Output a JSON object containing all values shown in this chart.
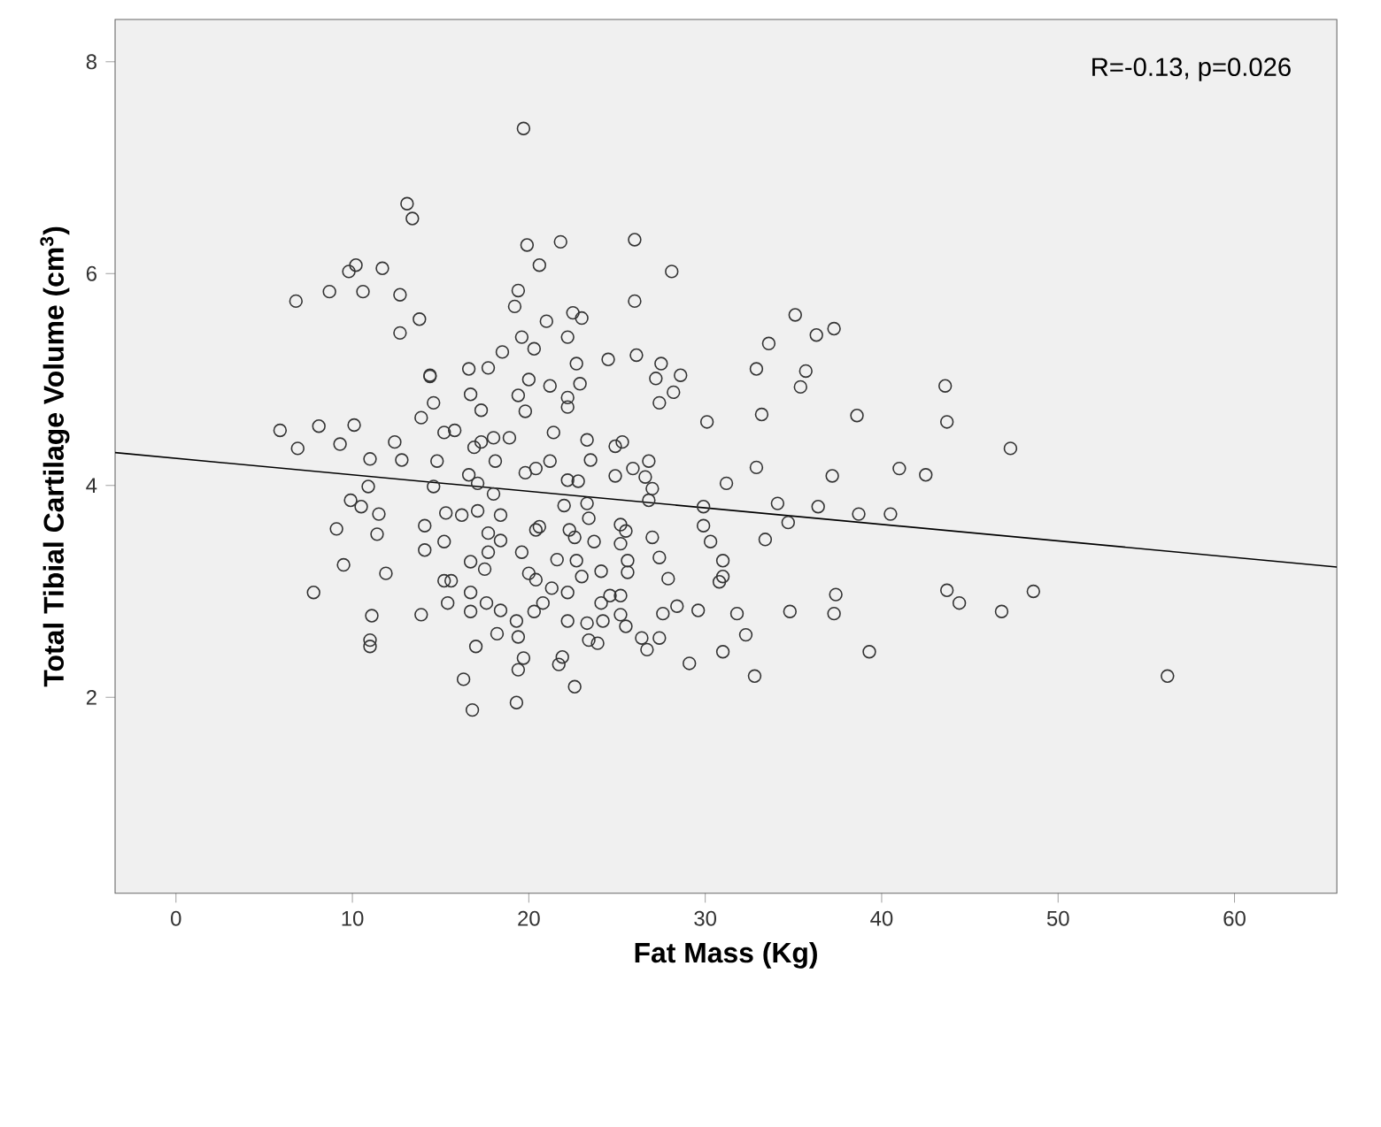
{
  "chart_data": {
    "type": "scatter",
    "xlabel": "Fat Mass (Kg)",
    "ylabel": "Total Tibial Cartilage Volume (cm$^{3}$)",
    "annotations": [
      "R=-0.13, p=0.026"
    ],
    "xlim": [
      -3.45,
      65.8
    ],
    "ylim": [
      0.15,
      8.4
    ],
    "xticks": [
      0,
      10,
      20,
      30,
      40,
      50,
      60
    ],
    "yticks": [
      2,
      4,
      6,
      8
    ],
    "marker": "circle",
    "series": [
      {
        "color": "#333333",
        "x": [
          13.1,
          13.4,
          10.2,
          9.8,
          11.7,
          6.8,
          8.7,
          10.6,
          12.7,
          13.8,
          12.7,
          14.4,
          16.6,
          17.7,
          18.5,
          5.9,
          6.9,
          8.1,
          9.3,
          10.1,
          11.0,
          12.4,
          12.8,
          10.9,
          9.9,
          10.5,
          11.5,
          9.1,
          11.4,
          9.5,
          11.9,
          7.8,
          11.1,
          11.0,
          11.0,
          13.9,
          15.4,
          13.9,
          14.8,
          14.6,
          14.1,
          14.1,
          15.3,
          15.2,
          15.2,
          15.6,
          16.7,
          17.5,
          16.7,
          16.7,
          17.6,
          18.4,
          18.2,
          17.0,
          16.3,
          16.8,
          15.2,
          15.8,
          16.7,
          17.3,
          17.3,
          16.9,
          16.6,
          17.1,
          17.1,
          16.2,
          17.7,
          17.7,
          18.4,
          18.4,
          18.1,
          18.0,
          18.0,
          14.6,
          14.4,
          19.7,
          19.9,
          21.8,
          20.6,
          26.0,
          28.1,
          26.0,
          19.4,
          19.2,
          21.0,
          22.5,
          23.0,
          22.2,
          19.6,
          20.3,
          24.5,
          26.1,
          27.5,
          22.7,
          35.1,
          33.6,
          36.3,
          37.3,
          32.9,
          35.7,
          30.1,
          33.2,
          38.6,
          35.4,
          32.9,
          31.2,
          37.2,
          41.0,
          29.9,
          29.9,
          30.3,
          31.0,
          31.0,
          30.8,
          34.1,
          34.7,
          33.4,
          36.4,
          38.7,
          40.5,
          37.4,
          37.3,
          34.8,
          31.8,
          29.6,
          32.3,
          31.0,
          29.1,
          32.8,
          39.3,
          28.4,
          27.6,
          27.4,
          26.7,
          26.4,
          27.9,
          27.4,
          27.0,
          27.0,
          26.8,
          26.8,
          25.6,
          25.6,
          25.2,
          25.5,
          25.2,
          25.3,
          24.9,
          25.9,
          24.9,
          26.6,
          25.2,
          24.6,
          24.1,
          25.2,
          25.5,
          24.2,
          23.3,
          23.4,
          23.9,
          24.1,
          23.0,
          22.7,
          22.2,
          22.2,
          21.9,
          21.7,
          22.6,
          19.7,
          19.4,
          19.3,
          20.3,
          20.8,
          19.3,
          19.4,
          23.3,
          23.4,
          23.7,
          22.6,
          22.2,
          22.8,
          23.5,
          23.3,
          21.4,
          21.2,
          20.4,
          19.8,
          20.6,
          20.4,
          22.3,
          21.6,
          20.0,
          20.4,
          21.3,
          19.6,
          22.0,
          20.0,
          21.2,
          22.9,
          19.4,
          22.2,
          19.8,
          22.2,
          28.6,
          27.2,
          28.2,
          27.4,
          18.9,
          43.6,
          43.7,
          47.3,
          42.5,
          43.7,
          44.4,
          46.8,
          48.6,
          56.2
        ],
        "values": [
          6.66,
          6.52,
          6.08,
          6.02,
          6.05,
          5.74,
          5.83,
          5.83,
          5.8,
          5.57,
          5.44,
          5.04,
          5.1,
          5.11,
          5.26,
          4.52,
          4.35,
          4.56,
          4.39,
          4.57,
          4.25,
          4.41,
          4.24,
          3.99,
          3.86,
          3.8,
          3.73,
          3.59,
          3.54,
          3.25,
          3.17,
          2.99,
          2.77,
          2.54,
          2.48,
          2.78,
          2.89,
          4.64,
          4.23,
          3.99,
          3.62,
          3.39,
          3.74,
          3.47,
          3.1,
          3.1,
          3.28,
          3.21,
          2.99,
          2.81,
          2.89,
          2.82,
          2.6,
          2.48,
          2.17,
          1.88,
          4.5,
          4.52,
          4.86,
          4.71,
          4.41,
          4.36,
          4.1,
          4.02,
          3.76,
          3.72,
          3.55,
          3.37,
          3.48,
          3.72,
          4.23,
          4.45,
          3.92,
          4.78,
          5.03,
          7.37,
          6.27,
          6.3,
          6.08,
          6.32,
          6.02,
          5.74,
          5.84,
          5.69,
          5.55,
          5.63,
          5.58,
          5.4,
          5.4,
          5.29,
          5.19,
          5.23,
          5.15,
          5.15,
          5.61,
          5.34,
          5.42,
          5.48,
          5.1,
          5.08,
          4.6,
          4.67,
          4.66,
          4.93,
          4.17,
          4.02,
          4.09,
          4.16,
          3.8,
          3.62,
          3.47,
          3.29,
          3.14,
          3.09,
          3.83,
          3.65,
          3.49,
          3.8,
          3.73,
          3.73,
          2.97,
          2.79,
          2.81,
          2.79,
          2.82,
          2.59,
          2.43,
          2.32,
          2.2,
          2.43,
          2.86,
          2.79,
          2.56,
          2.45,
          2.56,
          3.12,
          3.32,
          3.51,
          3.97,
          3.86,
          4.23,
          3.29,
          3.18,
          3.45,
          3.57,
          3.63,
          4.41,
          4.37,
          4.16,
          4.09,
          4.08,
          2.96,
          2.96,
          2.89,
          2.78,
          2.67,
          2.72,
          2.7,
          2.54,
          2.51,
          3.19,
          3.14,
          3.29,
          2.99,
          2.72,
          2.38,
          2.31,
          2.1,
          2.37,
          2.26,
          1.95,
          2.81,
          2.89,
          2.72,
          2.57,
          3.83,
          3.69,
          3.47,
          3.51,
          4.05,
          4.04,
          4.24,
          4.43,
          4.5,
          4.23,
          4.16,
          4.12,
          3.61,
          3.58,
          3.58,
          3.3,
          3.17,
          3.11,
          3.03,
          3.37,
          3.81,
          5.0,
          4.94,
          4.96,
          4.85,
          4.83,
          4.7,
          4.74,
          5.04,
          5.01,
          4.88,
          4.78,
          4.45,
          4.94,
          4.6,
          4.35,
          4.1,
          3.01,
          2.89,
          2.81,
          3.0,
          2.2
        ]
      },
      {
        "type": "line",
        "color": "#000000",
        "marker": "none",
        "x": [
          -3.45,
          65.8
        ],
        "values": [
          4.31,
          3.23
        ]
      }
    ]
  }
}
